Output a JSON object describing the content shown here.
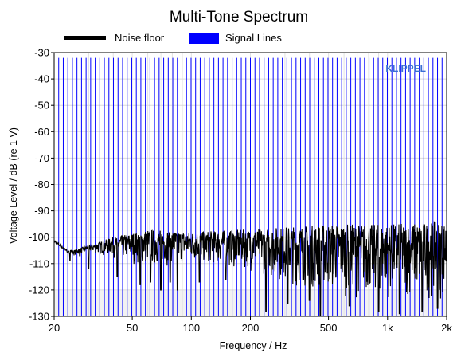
{
  "chart_data": {
    "type": "line",
    "title": "Multi-Tone Spectrum",
    "xlabel": "Frequency / Hz",
    "ylabel": "Voltage Level / dB (re 1 V)",
    "x_scale": "log",
    "xlim": [
      20,
      2000
    ],
    "ylim": [
      -130,
      -30
    ],
    "x_ticks": [
      20,
      50,
      100,
      200,
      500,
      1000,
      2000
    ],
    "x_tick_labels": [
      "20",
      "50",
      "100",
      "200",
      "500",
      "1k",
      "2k"
    ],
    "y_ticks": [
      -30,
      -40,
      -50,
      -60,
      -70,
      -80,
      -90,
      -100,
      -110,
      -120,
      -130
    ],
    "grid": true,
    "legend_position": "top",
    "watermark": "KLIPPEL",
    "series": [
      {
        "name": "Noise floor",
        "color": "#000000",
        "style": "line",
        "band_low_db": [
          [
            20,
            -103
          ],
          [
            25,
            -107
          ],
          [
            30,
            -106
          ],
          [
            40,
            -108
          ],
          [
            60,
            -112
          ],
          [
            100,
            -110
          ],
          [
            200,
            -113
          ],
          [
            300,
            -118
          ],
          [
            500,
            -122
          ],
          [
            1000,
            -124
          ],
          [
            2000,
            -124
          ]
        ],
        "band_high_db": [
          [
            20,
            -101
          ],
          [
            25,
            -105
          ],
          [
            30,
            -103
          ],
          [
            40,
            -100
          ],
          [
            60,
            -97
          ],
          [
            100,
            -98
          ],
          [
            200,
            -97
          ],
          [
            300,
            -96
          ],
          [
            500,
            -95
          ],
          [
            1000,
            -95
          ],
          [
            2000,
            -94
          ]
        ],
        "deep_dips": [
          [
            24,
            -109
          ],
          [
            27,
            -107
          ],
          [
            30,
            -112
          ],
          [
            42,
            -115
          ],
          [
            55,
            -118
          ],
          [
            62,
            -117
          ],
          [
            70,
            -120
          ],
          [
            78,
            -117
          ],
          [
            85,
            -120
          ],
          [
            110,
            -117
          ],
          [
            150,
            -116
          ],
          [
            240,
            -128
          ],
          [
            310,
            -125
          ],
          [
            400,
            -124
          ],
          [
            455,
            -130
          ],
          [
            640,
            -126
          ],
          [
            900,
            -128
          ],
          [
            1150,
            -129
          ],
          [
            1500,
            -128
          ],
          [
            1800,
            -127
          ]
        ]
      },
      {
        "name": "Signal Lines",
        "color": "#0000ff",
        "style": "stem",
        "level_db": -32,
        "tone_count": 87,
        "f_min": 20,
        "f_max": 2000
      }
    ]
  }
}
